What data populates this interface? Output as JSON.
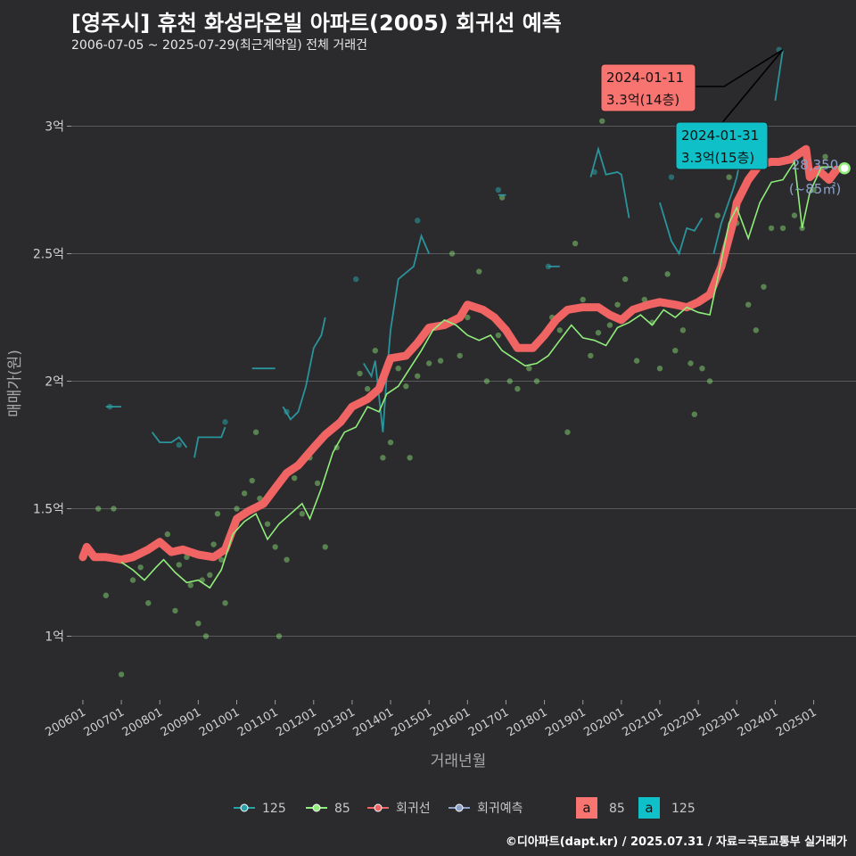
{
  "header": {
    "title": "[영주시] 휴천 화성라온빌 아파트(2005) 회귀선 예측",
    "subtitle": "2006-07-05 ~ 2025-07-29(최근계약일) 전체 거래건"
  },
  "caption": "©디아파트(dapt.kr) / 2025.07.31 / 자료=국토교통부 실거래가",
  "colors": {
    "background": "#2b2a2d",
    "grid": "#5a5a5e",
    "s125": "#2aa0a8",
    "s85": "#90ee7a",
    "regression": "#f06464",
    "forecast": "#8ca0c8"
  },
  "chart_data": {
    "type": "line",
    "xlabel": "거래년월",
    "ylabel": "매매가(원)",
    "x_ticks": [
      "200601",
      "200701",
      "200801",
      "200901",
      "201001",
      "201101",
      "201201",
      "201301",
      "201401",
      "201501",
      "201601",
      "201701",
      "201801",
      "201901",
      "202001",
      "202101",
      "202201",
      "202301",
      "202401",
      "202501"
    ],
    "y_ticks": [
      {
        "value": 1.0,
        "label": "1억"
      },
      {
        "value": 1.5,
        "label": "1.5억"
      },
      {
        "value": 2.0,
        "label": "2억"
      },
      {
        "value": 2.5,
        "label": "2.5억"
      },
      {
        "value": 3.0,
        "label": "3억"
      }
    ],
    "ylim": [
      0.75,
      3.25
    ],
    "xlim": [
      2005.7,
      2026.1
    ],
    "y_unit": "억원",
    "series": [
      {
        "name": "회귀선",
        "color": "#f06464",
        "points": [
          [
            2006.0,
            1.31
          ],
          [
            2006.1,
            1.35
          ],
          [
            2006.3,
            1.31
          ],
          [
            2006.6,
            1.31
          ],
          [
            2007.0,
            1.3
          ],
          [
            2007.3,
            1.31
          ],
          [
            2007.7,
            1.34
          ],
          [
            2008.0,
            1.37
          ],
          [
            2008.3,
            1.33
          ],
          [
            2008.6,
            1.34
          ],
          [
            2009.0,
            1.32
          ],
          [
            2009.4,
            1.31
          ],
          [
            2009.7,
            1.34
          ],
          [
            2010.0,
            1.46
          ],
          [
            2010.3,
            1.49
          ],
          [
            2010.7,
            1.52
          ],
          [
            2011.0,
            1.58
          ],
          [
            2011.3,
            1.64
          ],
          [
            2011.6,
            1.67
          ],
          [
            2012.0,
            1.74
          ],
          [
            2012.3,
            1.79
          ],
          [
            2012.7,
            1.84
          ],
          [
            2013.0,
            1.9
          ],
          [
            2013.4,
            1.93
          ],
          [
            2013.7,
            1.97
          ],
          [
            2014.0,
            2.09
          ],
          [
            2014.4,
            2.1
          ],
          [
            2014.7,
            2.15
          ],
          [
            2015.0,
            2.21
          ],
          [
            2015.4,
            2.22
          ],
          [
            2015.8,
            2.25
          ],
          [
            2016.0,
            2.3
          ],
          [
            2016.4,
            2.28
          ],
          [
            2016.7,
            2.25
          ],
          [
            2017.0,
            2.2
          ],
          [
            2017.3,
            2.13
          ],
          [
            2017.7,
            2.13
          ],
          [
            2018.0,
            2.18
          ],
          [
            2018.3,
            2.24
          ],
          [
            2018.6,
            2.28
          ],
          [
            2019.0,
            2.29
          ],
          [
            2019.4,
            2.29
          ],
          [
            2019.7,
            2.26
          ],
          [
            2020.0,
            2.24
          ],
          [
            2020.3,
            2.28
          ],
          [
            2020.7,
            2.3
          ],
          [
            2021.0,
            2.31
          ],
          [
            2021.4,
            2.3
          ],
          [
            2021.7,
            2.29
          ],
          [
            2022.0,
            2.31
          ],
          [
            2022.3,
            2.34
          ],
          [
            2022.6,
            2.45
          ],
          [
            2022.9,
            2.62
          ],
          [
            2023.0,
            2.7
          ],
          [
            2023.3,
            2.79
          ],
          [
            2023.6,
            2.85
          ],
          [
            2023.9,
            2.86
          ],
          [
            2024.1,
            2.86
          ],
          [
            2024.4,
            2.87
          ],
          [
            2024.7,
            2.9
          ],
          [
            2024.8,
            2.91
          ],
          [
            2024.9,
            2.8
          ],
          [
            2025.1,
            2.83
          ],
          [
            2025.4,
            2.79
          ],
          [
            2025.6,
            2.83
          ]
        ]
      },
      {
        "name": "85",
        "color": "#90ee7a",
        "points": [
          [
            2007.0,
            1.29
          ],
          [
            2007.3,
            1.26
          ],
          [
            2007.6,
            1.22
          ],
          [
            2007.9,
            1.27
          ],
          [
            2008.1,
            1.3
          ],
          [
            2008.4,
            1.25
          ],
          [
            2008.7,
            1.21
          ],
          [
            2009.0,
            1.22
          ],
          [
            2009.3,
            1.19
          ],
          [
            2009.6,
            1.26
          ],
          [
            2009.9,
            1.4
          ],
          [
            2010.2,
            1.45
          ],
          [
            2010.5,
            1.48
          ],
          [
            2010.8,
            1.38
          ],
          [
            2011.1,
            1.44
          ],
          [
            2011.4,
            1.48
          ],
          [
            2011.7,
            1.52
          ],
          [
            2011.9,
            1.46
          ],
          [
            2012.2,
            1.58
          ],
          [
            2012.5,
            1.72
          ],
          [
            2012.8,
            1.8
          ],
          [
            2013.1,
            1.82
          ],
          [
            2013.4,
            1.9
          ],
          [
            2013.7,
            1.88
          ],
          [
            2013.9,
            1.95
          ],
          [
            2014.2,
            1.98
          ],
          [
            2014.5,
            2.05
          ],
          [
            2014.8,
            2.12
          ],
          [
            2015.1,
            2.2
          ],
          [
            2015.4,
            2.24
          ],
          [
            2015.7,
            2.22
          ],
          [
            2016.0,
            2.18
          ],
          [
            2016.3,
            2.16
          ],
          [
            2016.6,
            2.18
          ],
          [
            2016.9,
            2.12
          ],
          [
            2017.2,
            2.09
          ],
          [
            2017.5,
            2.06
          ],
          [
            2017.8,
            2.07
          ],
          [
            2018.1,
            2.1
          ],
          [
            2018.4,
            2.16
          ],
          [
            2018.7,
            2.22
          ],
          [
            2019.0,
            2.17
          ],
          [
            2019.3,
            2.16
          ],
          [
            2019.6,
            2.14
          ],
          [
            2019.9,
            2.21
          ],
          [
            2020.2,
            2.23
          ],
          [
            2020.5,
            2.26
          ],
          [
            2020.8,
            2.22
          ],
          [
            2021.1,
            2.28
          ],
          [
            2021.4,
            2.25
          ],
          [
            2021.7,
            2.29
          ],
          [
            2022.0,
            2.27
          ],
          [
            2022.3,
            2.26
          ],
          [
            2022.5,
            2.4
          ],
          [
            2022.8,
            2.62
          ],
          [
            2023.0,
            2.68
          ],
          [
            2023.3,
            2.56
          ],
          [
            2023.6,
            2.7
          ],
          [
            2023.9,
            2.78
          ],
          [
            2024.2,
            2.79
          ],
          [
            2024.5,
            2.86
          ],
          [
            2024.7,
            2.6
          ],
          [
            2024.9,
            2.74
          ],
          [
            2025.2,
            2.84
          ],
          [
            2025.5,
            2.84
          ]
        ]
      },
      {
        "name": "125",
        "color": "#2aa0a8",
        "segments": [
          [
            [
              2006.6,
              1.9
            ],
            [
              2007.0,
              1.9
            ]
          ],
          [
            [
              2007.8,
              1.8
            ],
            [
              2008.0,
              1.76
            ],
            [
              2008.3,
              1.76
            ],
            [
              2008.5,
              1.78
            ],
            [
              2008.7,
              1.74
            ]
          ],
          [
            [
              2008.9,
              1.7
            ],
            [
              2009.0,
              1.78
            ],
            [
              2009.6,
              1.78
            ],
            [
              2009.7,
              1.82
            ]
          ],
          [
            [
              2010.4,
              2.05
            ],
            [
              2011.0,
              2.05
            ]
          ],
          [
            [
              2011.2,
              1.9
            ],
            [
              2011.4,
              1.85
            ],
            [
              2011.6,
              1.88
            ],
            [
              2011.8,
              1.98
            ],
            [
              2012.0,
              2.13
            ],
            [
              2012.2,
              2.18
            ],
            [
              2012.3,
              2.25
            ]
          ],
          [
            [
              2013.3,
              2.07
            ],
            [
              2013.5,
              2.02
            ],
            [
              2013.6,
              2.08
            ],
            [
              2013.8,
              1.8
            ],
            [
              2013.9,
              2.02
            ],
            [
              2014.0,
              2.2
            ],
            [
              2014.2,
              2.4
            ],
            [
              2014.6,
              2.45
            ],
            [
              2014.8,
              2.57
            ],
            [
              2015.0,
              2.5
            ]
          ],
          [
            [
              2016.8,
              2.73
            ],
            [
              2017.0,
              2.73
            ]
          ],
          [
            [
              2018.1,
              2.45
            ],
            [
              2018.4,
              2.45
            ]
          ],
          [
            [
              2019.2,
              2.8
            ],
            [
              2019.4,
              2.91
            ],
            [
              2019.6,
              2.81
            ],
            [
              2019.9,
              2.82
            ],
            [
              2020.0,
              2.81
            ],
            [
              2020.2,
              2.64
            ]
          ],
          [
            [
              2021.0,
              2.7
            ],
            [
              2021.3,
              2.55
            ],
            [
              2021.5,
              2.5
            ],
            [
              2021.7,
              2.6
            ],
            [
              2021.9,
              2.59
            ],
            [
              2022.1,
              2.64
            ]
          ],
          [
            [
              2022.4,
              2.5
            ],
            [
              2022.6,
              2.62
            ],
            [
              2022.9,
              2.75
            ],
            [
              2023.0,
              2.8
            ],
            [
              2023.2,
              2.95
            ],
            [
              2023.4,
              2.95
            ]
          ],
          [
            [
              2024.0,
              3.1
            ],
            [
              2024.2,
              3.3
            ]
          ]
        ]
      },
      {
        "name": "회귀예측",
        "color": "#8ca0c8",
        "points": [
          [
            2025.8,
            2.835
          ]
        ]
      }
    ],
    "scatter_85": [
      [
        2006.4,
        1.5
      ],
      [
        2006.8,
        1.5
      ],
      [
        2006.6,
        1.16
      ],
      [
        2007.0,
        0.85
      ],
      [
        2007.3,
        1.22
      ],
      [
        2007.5,
        1.27
      ],
      [
        2007.7,
        1.13
      ],
      [
        2008.0,
        1.37
      ],
      [
        2008.2,
        1.4
      ],
      [
        2008.4,
        1.1
      ],
      [
        2008.5,
        1.28
      ],
      [
        2008.7,
        1.31
      ],
      [
        2008.8,
        1.2
      ],
      [
        2008.9,
        1.32
      ],
      [
        2009.0,
        1.05
      ],
      [
        2009.1,
        1.22
      ],
      [
        2009.2,
        1.0
      ],
      [
        2009.3,
        1.24
      ],
      [
        2009.4,
        1.36
      ],
      [
        2009.5,
        1.48
      ],
      [
        2009.6,
        1.3
      ],
      [
        2009.7,
        1.13
      ],
      [
        2009.9,
        1.42
      ],
      [
        2010.0,
        1.5
      ],
      [
        2010.2,
        1.56
      ],
      [
        2010.4,
        1.61
      ],
      [
        2010.5,
        1.8
      ],
      [
        2010.6,
        1.54
      ],
      [
        2010.8,
        1.44
      ],
      [
        2011.0,
        1.35
      ],
      [
        2011.1,
        1.0
      ],
      [
        2011.3,
        1.3
      ],
      [
        2011.5,
        1.62
      ],
      [
        2011.7,
        1.48
      ],
      [
        2011.9,
        1.7
      ],
      [
        2012.1,
        1.6
      ],
      [
        2012.3,
        1.35
      ],
      [
        2012.6,
        1.74
      ],
      [
        2012.8,
        1.86
      ],
      [
        2013.0,
        1.9
      ],
      [
        2013.2,
        2.03
      ],
      [
        2013.4,
        1.97
      ],
      [
        2013.6,
        2.12
      ],
      [
        2013.8,
        1.7
      ],
      [
        2014.0,
        1.76
      ],
      [
        2014.2,
        2.05
      ],
      [
        2014.4,
        1.98
      ],
      [
        2014.5,
        1.7
      ],
      [
        2014.7,
        2.02
      ],
      [
        2014.9,
        2.19
      ],
      [
        2015.0,
        2.07
      ],
      [
        2015.3,
        2.08
      ],
      [
        2015.6,
        2.5
      ],
      [
        2015.8,
        2.1
      ],
      [
        2016.0,
        2.25
      ],
      [
        2016.3,
        2.43
      ],
      [
        2016.5,
        2.0
      ],
      [
        2016.8,
        2.18
      ],
      [
        2016.9,
        2.72
      ],
      [
        2017.1,
        2.0
      ],
      [
        2017.3,
        1.97
      ],
      [
        2017.6,
        2.05
      ],
      [
        2017.8,
        2.0
      ],
      [
        2018.0,
        2.18
      ],
      [
        2018.2,
        2.25
      ],
      [
        2018.4,
        2.2
      ],
      [
        2018.6,
        1.8
      ],
      [
        2018.8,
        2.54
      ],
      [
        2019.0,
        2.32
      ],
      [
        2019.2,
        2.1
      ],
      [
        2019.4,
        2.19
      ],
      [
        2019.5,
        3.02
      ],
      [
        2019.7,
        2.22
      ],
      [
        2019.9,
        2.3
      ],
      [
        2020.1,
        2.4
      ],
      [
        2020.4,
        2.08
      ],
      [
        2020.6,
        2.32
      ],
      [
        2020.8,
        2.23
      ],
      [
        2021.0,
        2.05
      ],
      [
        2021.2,
        2.42
      ],
      [
        2021.4,
        2.12
      ],
      [
        2021.6,
        2.2
      ],
      [
        2021.8,
        2.07
      ],
      [
        2021.9,
        1.87
      ],
      [
        2022.1,
        2.05
      ],
      [
        2022.3,
        2.0
      ],
      [
        2022.5,
        2.65
      ],
      [
        2022.8,
        2.8
      ],
      [
        2023.0,
        2.62
      ],
      [
        2023.3,
        2.3
      ],
      [
        2023.5,
        2.2
      ],
      [
        2023.7,
        2.37
      ],
      [
        2023.9,
        2.6
      ],
      [
        2024.2,
        2.6
      ],
      [
        2024.5,
        2.65
      ],
      [
        2024.7,
        2.6
      ],
      [
        2025.0,
        2.75
      ],
      [
        2025.3,
        2.88
      ]
    ],
    "scatter_125": [
      [
        2006.7,
        1.9
      ],
      [
        2008.5,
        1.75
      ],
      [
        2009.7,
        1.84
      ],
      [
        2011.3,
        1.88
      ],
      [
        2013.1,
        2.4
      ],
      [
        2014.7,
        2.63
      ],
      [
        2016.8,
        2.75
      ],
      [
        2018.1,
        2.45
      ],
      [
        2019.3,
        2.82
      ],
      [
        2021.3,
        2.8
      ],
      [
        2022.0,
        2.88
      ],
      [
        2024.1,
        3.3
      ]
    ],
    "annotations": [
      {
        "date": "2024-01-11",
        "price": "3.3억(14층)",
        "series": "85",
        "fill": "#f87470"
      },
      {
        "date": "2024-01-31",
        "price": "3.3억(15층)",
        "series": "125",
        "fill": "#10c0c8"
      }
    ],
    "forecast_label": {
      "value": "28,350",
      "area": "(~85㎡)"
    },
    "legend": {
      "position": "bottom",
      "line_items": [
        "125",
        "85",
        "회귀선",
        "회귀예측"
      ],
      "fill_items": [
        {
          "glyph": "a",
          "label": "85",
          "color": "#f87470"
        },
        {
          "glyph": "a",
          "label": "125",
          "color": "#10c0c8"
        }
      ]
    }
  }
}
